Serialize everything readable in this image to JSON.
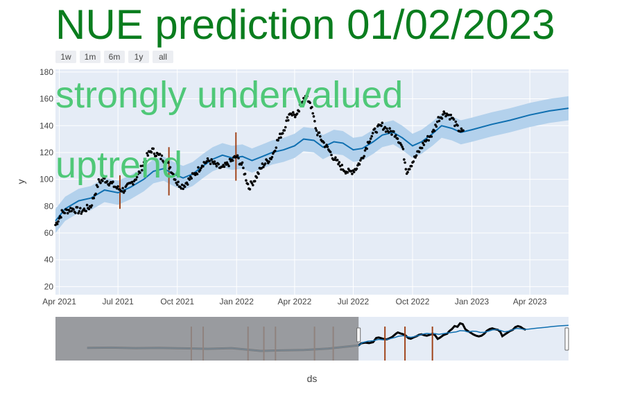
{
  "title": "NUE prediction 01/02/2023",
  "annotations": [
    "strongly undervalued",
    "uptrend"
  ],
  "range_selector": {
    "buttons": [
      "1w",
      "1m",
      "6m",
      "1y",
      "all"
    ],
    "selected_index": 4
  },
  "colors": {
    "title": "#0a7d1e",
    "annotation": "#4fc878",
    "plot_bg": "#e5ecf6",
    "band": "#b3d1ec",
    "trend": "#0f6fb0",
    "points": "#000000",
    "changepoints": "#a0441b",
    "slider_mask": "#8c8d8f"
  },
  "chart_data": {
    "type": "line",
    "xlabel": "ds",
    "ylabel": "y",
    "x_range": [
      "2021-03-26",
      "2023-05-31"
    ],
    "ylim": [
      14,
      182
    ],
    "x_ticks": [
      {
        "date": "2021-04-01",
        "label": "Apr 2021"
      },
      {
        "date": "2021-07-01",
        "label": "Jul 2021"
      },
      {
        "date": "2021-10-01",
        "label": "Oct 2021"
      },
      {
        "date": "2022-01-01",
        "label": "Jan 2022"
      },
      {
        "date": "2022-04-01",
        "label": "Apr 2022"
      },
      {
        "date": "2022-07-01",
        "label": "Jul 2022"
      },
      {
        "date": "2022-10-01",
        "label": "Oct 2022"
      },
      {
        "date": "2023-01-01",
        "label": "Jan 2023"
      },
      {
        "date": "2023-04-01",
        "label": "Apr 2023"
      }
    ],
    "y_ticks": [
      20,
      40,
      60,
      80,
      100,
      120,
      140,
      160,
      180
    ],
    "grid": true,
    "band_halfwidth": 9,
    "forecast": {
      "name": "yhat",
      "points": [
        [
          "2021-03-26",
          69
        ],
        [
          "2021-04-10",
          78
        ],
        [
          "2021-05-01",
          84
        ],
        [
          "2021-05-20",
          86
        ],
        [
          "2021-06-10",
          92
        ],
        [
          "2021-07-01",
          90
        ],
        [
          "2021-07-20",
          94
        ],
        [
          "2021-08-10",
          100
        ],
        [
          "2021-08-25",
          106
        ],
        [
          "2021-09-10",
          108
        ],
        [
          "2021-09-25",
          104
        ],
        [
          "2021-10-10",
          101
        ],
        [
          "2021-10-25",
          104
        ],
        [
          "2021-11-10",
          110
        ],
        [
          "2021-11-25",
          115
        ],
        [
          "2021-12-10",
          118
        ],
        [
          "2021-12-25",
          116
        ],
        [
          "2022-01-10",
          117
        ],
        [
          "2022-01-25",
          114
        ],
        [
          "2022-02-10",
          117
        ],
        [
          "2022-02-25",
          120
        ],
        [
          "2022-03-15",
          122
        ],
        [
          "2022-04-01",
          125
        ],
        [
          "2022-04-15",
          130
        ],
        [
          "2022-05-01",
          129
        ],
        [
          "2022-05-15",
          124
        ],
        [
          "2022-06-01",
          128
        ],
        [
          "2022-06-15",
          127
        ],
        [
          "2022-07-01",
          122
        ],
        [
          "2022-07-15",
          123
        ],
        [
          "2022-08-01",
          128
        ],
        [
          "2022-08-15",
          133
        ],
        [
          "2022-09-01",
          135
        ],
        [
          "2022-09-15",
          131
        ],
        [
          "2022-10-01",
          125
        ],
        [
          "2022-10-15",
          128
        ],
        [
          "2022-11-01",
          134
        ],
        [
          "2022-11-15",
          140
        ],
        [
          "2022-12-01",
          138
        ],
        [
          "2022-12-15",
          135
        ],
        [
          "2023-01-01",
          137
        ],
        [
          "2023-02-01",
          141
        ],
        [
          "2023-03-01",
          144
        ],
        [
          "2023-04-01",
          148
        ],
        [
          "2023-05-01",
          151
        ],
        [
          "2023-05-31",
          153
        ]
      ]
    },
    "observed": {
      "name": "y",
      "points": [
        [
          "2021-03-26",
          66
        ],
        [
          "2021-04-05",
          75
        ],
        [
          "2021-04-20",
          78
        ],
        [
          "2021-05-05",
          76
        ],
        [
          "2021-05-20",
          80
        ],
        [
          "2021-06-01",
          98
        ],
        [
          "2021-06-10",
          100
        ],
        [
          "2021-06-20",
          97
        ],
        [
          "2021-07-01",
          93
        ],
        [
          "2021-07-10",
          92
        ],
        [
          "2021-07-20",
          96
        ],
        [
          "2021-08-01",
          103
        ],
        [
          "2021-08-15",
          117
        ],
        [
          "2021-08-22",
          122
        ],
        [
          "2021-09-01",
          118
        ],
        [
          "2021-09-10",
          115
        ],
        [
          "2021-09-20",
          109
        ],
        [
          "2021-10-01",
          97
        ],
        [
          "2021-10-10",
          95
        ],
        [
          "2021-10-20",
          100
        ],
        [
          "2021-11-01",
          106
        ],
        [
          "2021-11-10",
          112
        ],
        [
          "2021-11-20",
          114
        ],
        [
          "2021-12-01",
          110
        ],
        [
          "2021-12-10",
          108
        ],
        [
          "2021-12-20",
          112
        ],
        [
          "2022-01-01",
          117
        ],
        [
          "2022-01-10",
          110
        ],
        [
          "2022-01-20",
          94
        ],
        [
          "2022-01-28",
          99
        ],
        [
          "2022-02-10",
          110
        ],
        [
          "2022-02-25",
          117
        ],
        [
          "2022-03-05",
          128
        ],
        [
          "2022-03-15",
          137
        ],
        [
          "2022-03-25",
          150
        ],
        [
          "2022-04-05",
          147
        ],
        [
          "2022-04-15",
          162
        ],
        [
          "2022-04-25",
          158
        ],
        [
          "2022-05-05",
          136
        ],
        [
          "2022-05-15",
          128
        ],
        [
          "2022-05-25",
          121
        ],
        [
          "2022-06-05",
          113
        ],
        [
          "2022-06-15",
          108
        ],
        [
          "2022-06-25",
          105
        ],
        [
          "2022-07-05",
          108
        ],
        [
          "2022-07-15",
          116
        ],
        [
          "2022-07-25",
          129
        ],
        [
          "2022-08-05",
          137
        ],
        [
          "2022-08-15",
          140
        ],
        [
          "2022-08-25",
          136
        ],
        [
          "2022-09-05",
          134
        ],
        [
          "2022-09-15",
          124
        ],
        [
          "2022-09-22",
          106
        ],
        [
          "2022-10-01",
          113
        ],
        [
          "2022-10-10",
          120
        ],
        [
          "2022-10-20",
          128
        ],
        [
          "2022-11-01",
          134
        ],
        [
          "2022-11-10",
          145
        ],
        [
          "2022-11-20",
          150
        ],
        [
          "2022-12-01",
          146
        ],
        [
          "2022-12-10",
          138
        ],
        [
          "2022-12-20",
          134
        ]
      ]
    },
    "changepoints": [
      {
        "date": "2021-07-04",
        "ymin": 78,
        "ymax": 103
      },
      {
        "date": "2021-09-18",
        "ymin": 88,
        "ymax": 124
      },
      {
        "date": "2021-12-31",
        "ymin": 99,
        "ymax": 135
      }
    ],
    "range_slider": {
      "x_range": [
        "2018-02-01",
        "2023-05-31"
      ],
      "window_start": "2021-03-26",
      "changepoints": [
        "2019-07-01",
        "2019-08-15",
        "2020-02-01",
        "2020-04-01",
        "2020-05-15",
        "2020-10-10",
        "2020-12-20",
        "2021-07-04",
        "2021-09-18",
        "2021-12-31"
      ]
    }
  }
}
